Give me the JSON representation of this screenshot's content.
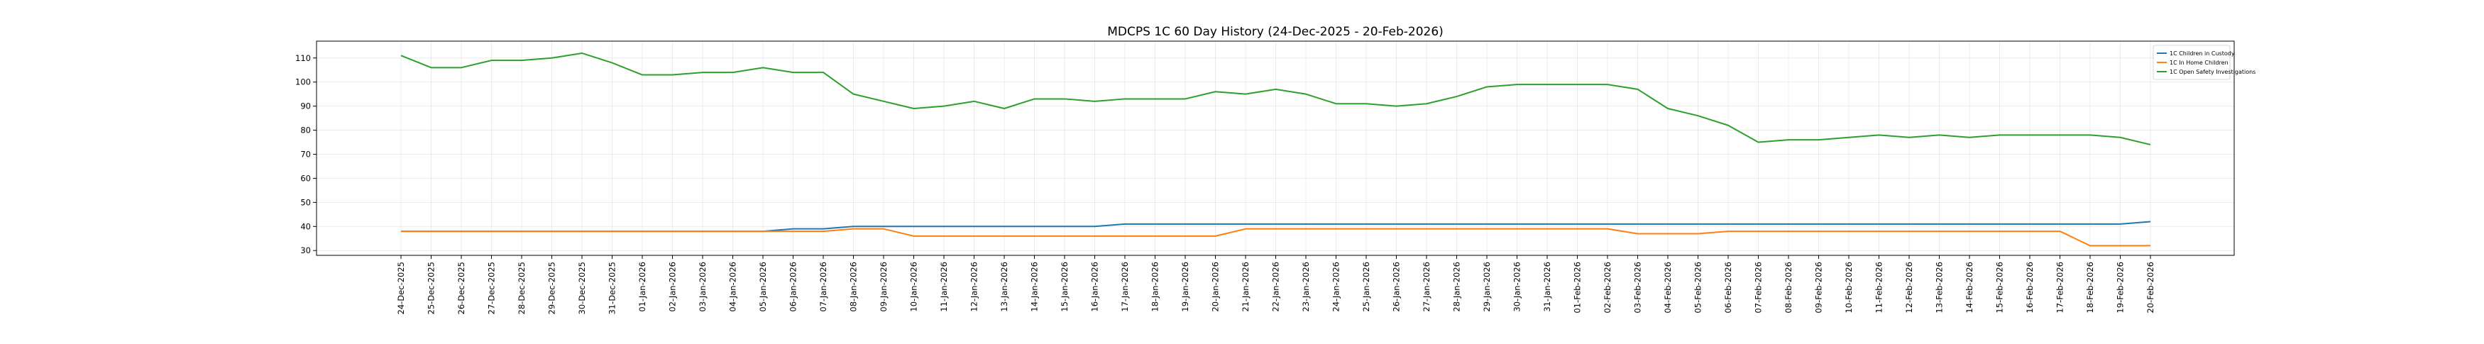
{
  "chart_data": {
    "type": "line",
    "title": "MDCPS 1C 60 Day History (24-Dec-2025 - 20-Feb-2026)",
    "xlabel": "",
    "ylabel": "",
    "ylim": [
      28,
      117
    ],
    "yticks": [
      30,
      40,
      50,
      60,
      70,
      80,
      90,
      100,
      110
    ],
    "grid": true,
    "legend_position": "top-right",
    "categories": [
      "24-Dec-2025",
      "25-Dec-2025",
      "26-Dec-2025",
      "27-Dec-2025",
      "28-Dec-2025",
      "29-Dec-2025",
      "30-Dec-2025",
      "31-Dec-2025",
      "01-Jan-2026",
      "02-Jan-2026",
      "03-Jan-2026",
      "04-Jan-2026",
      "05-Jan-2026",
      "06-Jan-2026",
      "07-Jan-2026",
      "08-Jan-2026",
      "09-Jan-2026",
      "10-Jan-2026",
      "11-Jan-2026",
      "12-Jan-2026",
      "13-Jan-2026",
      "14-Jan-2026",
      "15-Jan-2026",
      "16-Jan-2026",
      "17-Jan-2026",
      "18-Jan-2026",
      "19-Jan-2026",
      "20-Jan-2026",
      "21-Jan-2026",
      "22-Jan-2026",
      "23-Jan-2026",
      "24-Jan-2026",
      "25-Jan-2026",
      "26-Jan-2026",
      "27-Jan-2026",
      "28-Jan-2026",
      "29-Jan-2026",
      "30-Jan-2026",
      "31-Jan-2026",
      "01-Feb-2026",
      "02-Feb-2026",
      "03-Feb-2026",
      "04-Feb-2026",
      "05-Feb-2026",
      "06-Feb-2026",
      "07-Feb-2026",
      "08-Feb-2026",
      "09-Feb-2026",
      "10-Feb-2026",
      "11-Feb-2026",
      "12-Feb-2026",
      "13-Feb-2026",
      "14-Feb-2026",
      "15-Feb-2026",
      "16-Feb-2026",
      "17-Feb-2026",
      "18-Feb-2026",
      "19-Feb-2026",
      "20-Feb-2026"
    ],
    "series": [
      {
        "name": "1C Children in Custody",
        "color": "#1f77b4",
        "values": [
          38,
          38,
          38,
          38,
          38,
          38,
          38,
          38,
          38,
          38,
          38,
          38,
          38,
          39,
          39,
          40,
          40,
          40,
          40,
          40,
          40,
          40,
          40,
          40,
          41,
          41,
          41,
          41,
          41,
          41,
          41,
          41,
          41,
          41,
          41,
          41,
          41,
          41,
          41,
          41,
          41,
          41,
          41,
          41,
          41,
          41,
          41,
          41,
          41,
          41,
          41,
          41,
          41,
          41,
          41,
          41,
          41,
          41,
          42
        ]
      },
      {
        "name": "1C In Home Children",
        "color": "#ff7f0e",
        "values": [
          38,
          38,
          38,
          38,
          38,
          38,
          38,
          38,
          38,
          38,
          38,
          38,
          38,
          38,
          38,
          39,
          39,
          36,
          36,
          36,
          36,
          36,
          36,
          36,
          36,
          36,
          36,
          36,
          39,
          39,
          39,
          39,
          39,
          39,
          39,
          39,
          39,
          39,
          39,
          39,
          39,
          37,
          37,
          37,
          38,
          38,
          38,
          38,
          38,
          38,
          38,
          38,
          38,
          38,
          38,
          38,
          32,
          32,
          32
        ]
      },
      {
        "name": "1C Open Safety Investigations",
        "color": "#2ca02c",
        "values": [
          111,
          106,
          106,
          109,
          109,
          110,
          112,
          108,
          103,
          103,
          104,
          104,
          106,
          104,
          104,
          95,
          92,
          89,
          90,
          92,
          89,
          93,
          93,
          92,
          93,
          93,
          93,
          96,
          95,
          97,
          95,
          91,
          91,
          90,
          91,
          94,
          98,
          99,
          99,
          99,
          99,
          97,
          89,
          86,
          82,
          75,
          76,
          76,
          77,
          78,
          77,
          78,
          77,
          78,
          78,
          78,
          78,
          77,
          74
        ]
      }
    ]
  }
}
